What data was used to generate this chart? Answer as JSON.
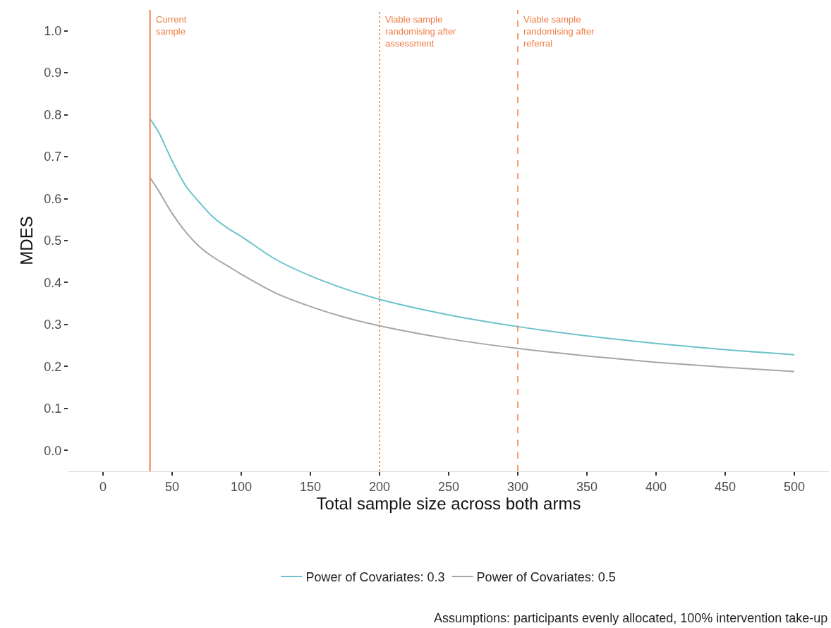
{
  "chart_data": {
    "type": "line",
    "xlabel": "Total sample size across both arms",
    "ylabel": "MDES",
    "x": [
      34,
      40,
      50,
      60,
      70,
      80,
      90,
      100,
      125,
      150,
      175,
      200,
      250,
      300,
      350,
      400,
      450,
      500
    ],
    "series": [
      {
        "name": "Power of Covariates: 0.3",
        "color": "#6cc3cb",
        "values": [
          0.79,
          0.76,
          0.69,
          0.63,
          0.59,
          0.555,
          0.53,
          0.51,
          0.455,
          0.416,
          0.385,
          0.36,
          0.323,
          0.295,
          0.273,
          0.255,
          0.24,
          0.228
        ]
      },
      {
        "name": "Power of Covariates: 0.5",
        "color": "#a6a6a6",
        "values": [
          0.65,
          0.62,
          0.565,
          0.52,
          0.485,
          0.46,
          0.44,
          0.42,
          0.375,
          0.343,
          0.317,
          0.297,
          0.266,
          0.243,
          0.225,
          0.21,
          0.198,
          0.188
        ]
      }
    ],
    "xlim": [
      -25,
      525
    ],
    "xticks": [
      0,
      50,
      100,
      150,
      200,
      250,
      300,
      350,
      400,
      450,
      500
    ],
    "ylim": [
      -0.05,
      1.05
    ],
    "yticks": [
      {
        "value": 0,
        "label": "0.0"
      },
      0.1,
      0.2,
      0.3,
      0.4,
      0.5,
      0.6,
      0.7,
      0.8,
      0.9,
      {
        "value": 1,
        "label": "1.0"
      }
    ],
    "ref_lines": [
      {
        "axis": "x",
        "value": 34,
        "label": "Current\nsample",
        "color": "#ef7d45",
        "line_style": "solid"
      },
      {
        "axis": "x",
        "value": 200,
        "label": "Viable sample\nrandomising after\nassessment",
        "color": "#ef7d45",
        "line_style": "dotted"
      },
      {
        "axis": "x",
        "value": 300,
        "label": "Viable sample\nrandomising after\nreferral",
        "color": "#ef7d45",
        "line_style": "dashed"
      }
    ],
    "annotations": [
      "Assumptions: participants evenly allocated, 100% intervention take-up"
    ],
    "legend": "bottom",
    "grid": false,
    "marker": "none",
    "line_style": "solid"
  }
}
